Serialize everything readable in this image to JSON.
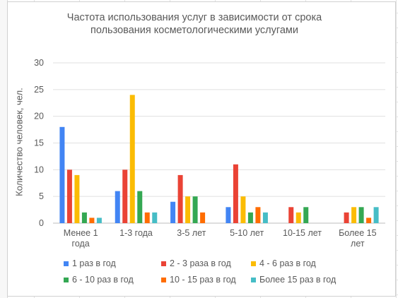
{
  "chart_data": {
    "type": "bar",
    "title": "Частота использования услуг в зависимости от срока пользования косметологическими услугами",
    "ylabel": "Количество человек, чел.",
    "xlabel": "",
    "ylim": [
      0,
      30
    ],
    "yticks": [
      0,
      5,
      10,
      15,
      20,
      25,
      30
    ],
    "grid": true,
    "legend_position": "bottom",
    "categories": [
      "Менее 1 года",
      "1-3 года",
      "3-5 лет",
      "5-10 лет",
      "10-15 лет",
      "Более 15 лет"
    ],
    "series": [
      {
        "name": "1 раз в год",
        "color": "#4285f4",
        "values": [
          18,
          6,
          4,
          3,
          0,
          0
        ]
      },
      {
        "name": "2 - 3 раза в год",
        "color": "#ea4335",
        "values": [
          10,
          10,
          9,
          11,
          3,
          2
        ]
      },
      {
        "name": "4 - 6 раз в год",
        "color": "#fbbc04",
        "values": [
          9,
          24,
          5,
          5,
          2,
          3
        ]
      },
      {
        "name": "6 - 10 раз в год",
        "color": "#34a853",
        "values": [
          2,
          6,
          5,
          2,
          3,
          3
        ]
      },
      {
        "name": "10 - 15 раз в год",
        "color": "#ff6d01",
        "values": [
          1,
          2,
          2,
          3,
          0,
          1
        ]
      },
      {
        "name": "Более 15 раз в год",
        "color": "#46bdc6",
        "values": [
          1,
          2,
          0,
          2,
          0,
          3
        ]
      }
    ]
  }
}
